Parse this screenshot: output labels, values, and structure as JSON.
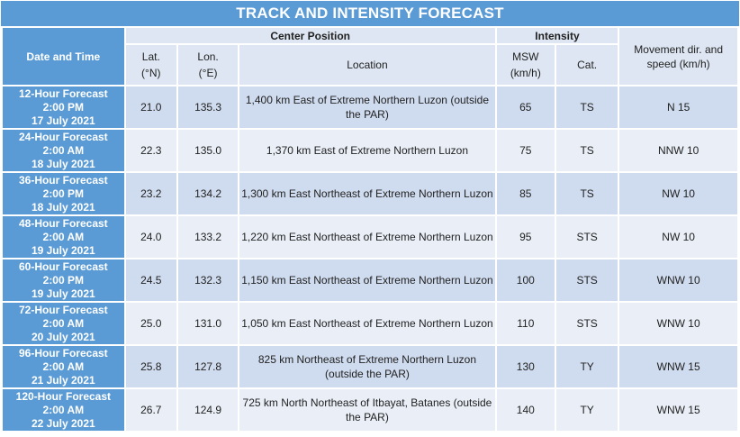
{
  "title": "TRACK AND INTENSITY FORECAST",
  "headers": {
    "date_time": "Date and Time",
    "center_position": "Center Position",
    "intensity": "Intensity",
    "lat": "Lat.",
    "lat_unit": "(°N)",
    "lon": "Lon.",
    "lon_unit": "(°E)",
    "location": "Location",
    "msw": "MSW",
    "msw_unit": "(km/h)",
    "cat": "Cat.",
    "movement": "Movement dir. and speed (km/h)"
  },
  "rows": [
    {
      "period": "12-Hour Forecast",
      "time": "2:00 PM",
      "date": "17 July 2021",
      "lat": "21.0",
      "lon": "135.3",
      "location": "1,400 km East of Extreme Northern Luzon (outside the PAR)",
      "msw": "65",
      "cat": "TS",
      "movement": "N 15"
    },
    {
      "period": "24-Hour Forecast",
      "time": "2:00 AM",
      "date": "18 July 2021",
      "lat": "22.3",
      "lon": "135.0",
      "location": "1,370 km East of Extreme Northern Luzon",
      "msw": "75",
      "cat": "TS",
      "movement": "NNW 10"
    },
    {
      "period": "36-Hour Forecast",
      "time": "2:00 PM",
      "date": "18 July 2021",
      "lat": "23.2",
      "lon": "134.2",
      "location": "1,300 km East Northeast of Extreme Northern Luzon",
      "msw": "85",
      "cat": "TS",
      "movement": "NW 10"
    },
    {
      "period": "48-Hour Forecast",
      "time": "2:00 AM",
      "date": "19 July 2021",
      "lat": "24.0",
      "lon": "133.2",
      "location": "1,220 km East Northeast of Extreme Northern Luzon",
      "msw": "95",
      "cat": "STS",
      "movement": "NW 10"
    },
    {
      "period": "60-Hour Forecast",
      "time": "2:00 PM",
      "date": "19 July 2021",
      "lat": "24.5",
      "lon": "132.3",
      "location": "1,150 km East Northeast of Extreme Northern Luzon",
      "msw": "100",
      "cat": "STS",
      "movement": "WNW 10"
    },
    {
      "period": "72-Hour Forecast",
      "time": "2:00 AM",
      "date": "20 July 2021",
      "lat": "25.0",
      "lon": "131.0",
      "location": "1,050 km East Northeast of Extreme Northern Luzon",
      "msw": "110",
      "cat": "STS",
      "movement": "WNW 10"
    },
    {
      "period": "96-Hour Forecast",
      "time": "2:00 AM",
      "date": "21 July 2021",
      "lat": "25.8",
      "lon": "127.8",
      "location": "825 km Northeast of Extreme Northern Luzon (outside the PAR)",
      "msw": "130",
      "cat": "TY",
      "movement": "WNW 15"
    },
    {
      "period": "120-Hour Forecast",
      "time": "2:00 AM",
      "date": "22 July 2021",
      "lat": "26.7",
      "lon": "124.9",
      "location": "725 km North Northeast of Itbayat, Batanes (outside the PAR)",
      "msw": "140",
      "cat": "TY",
      "movement": "WNW 15"
    }
  ],
  "colors": {
    "header_blue": "#5b9bd5",
    "header_light": "#dde6f2",
    "row_shade_a": "#cfdbee",
    "row_shade_b": "#e9eef7"
  }
}
